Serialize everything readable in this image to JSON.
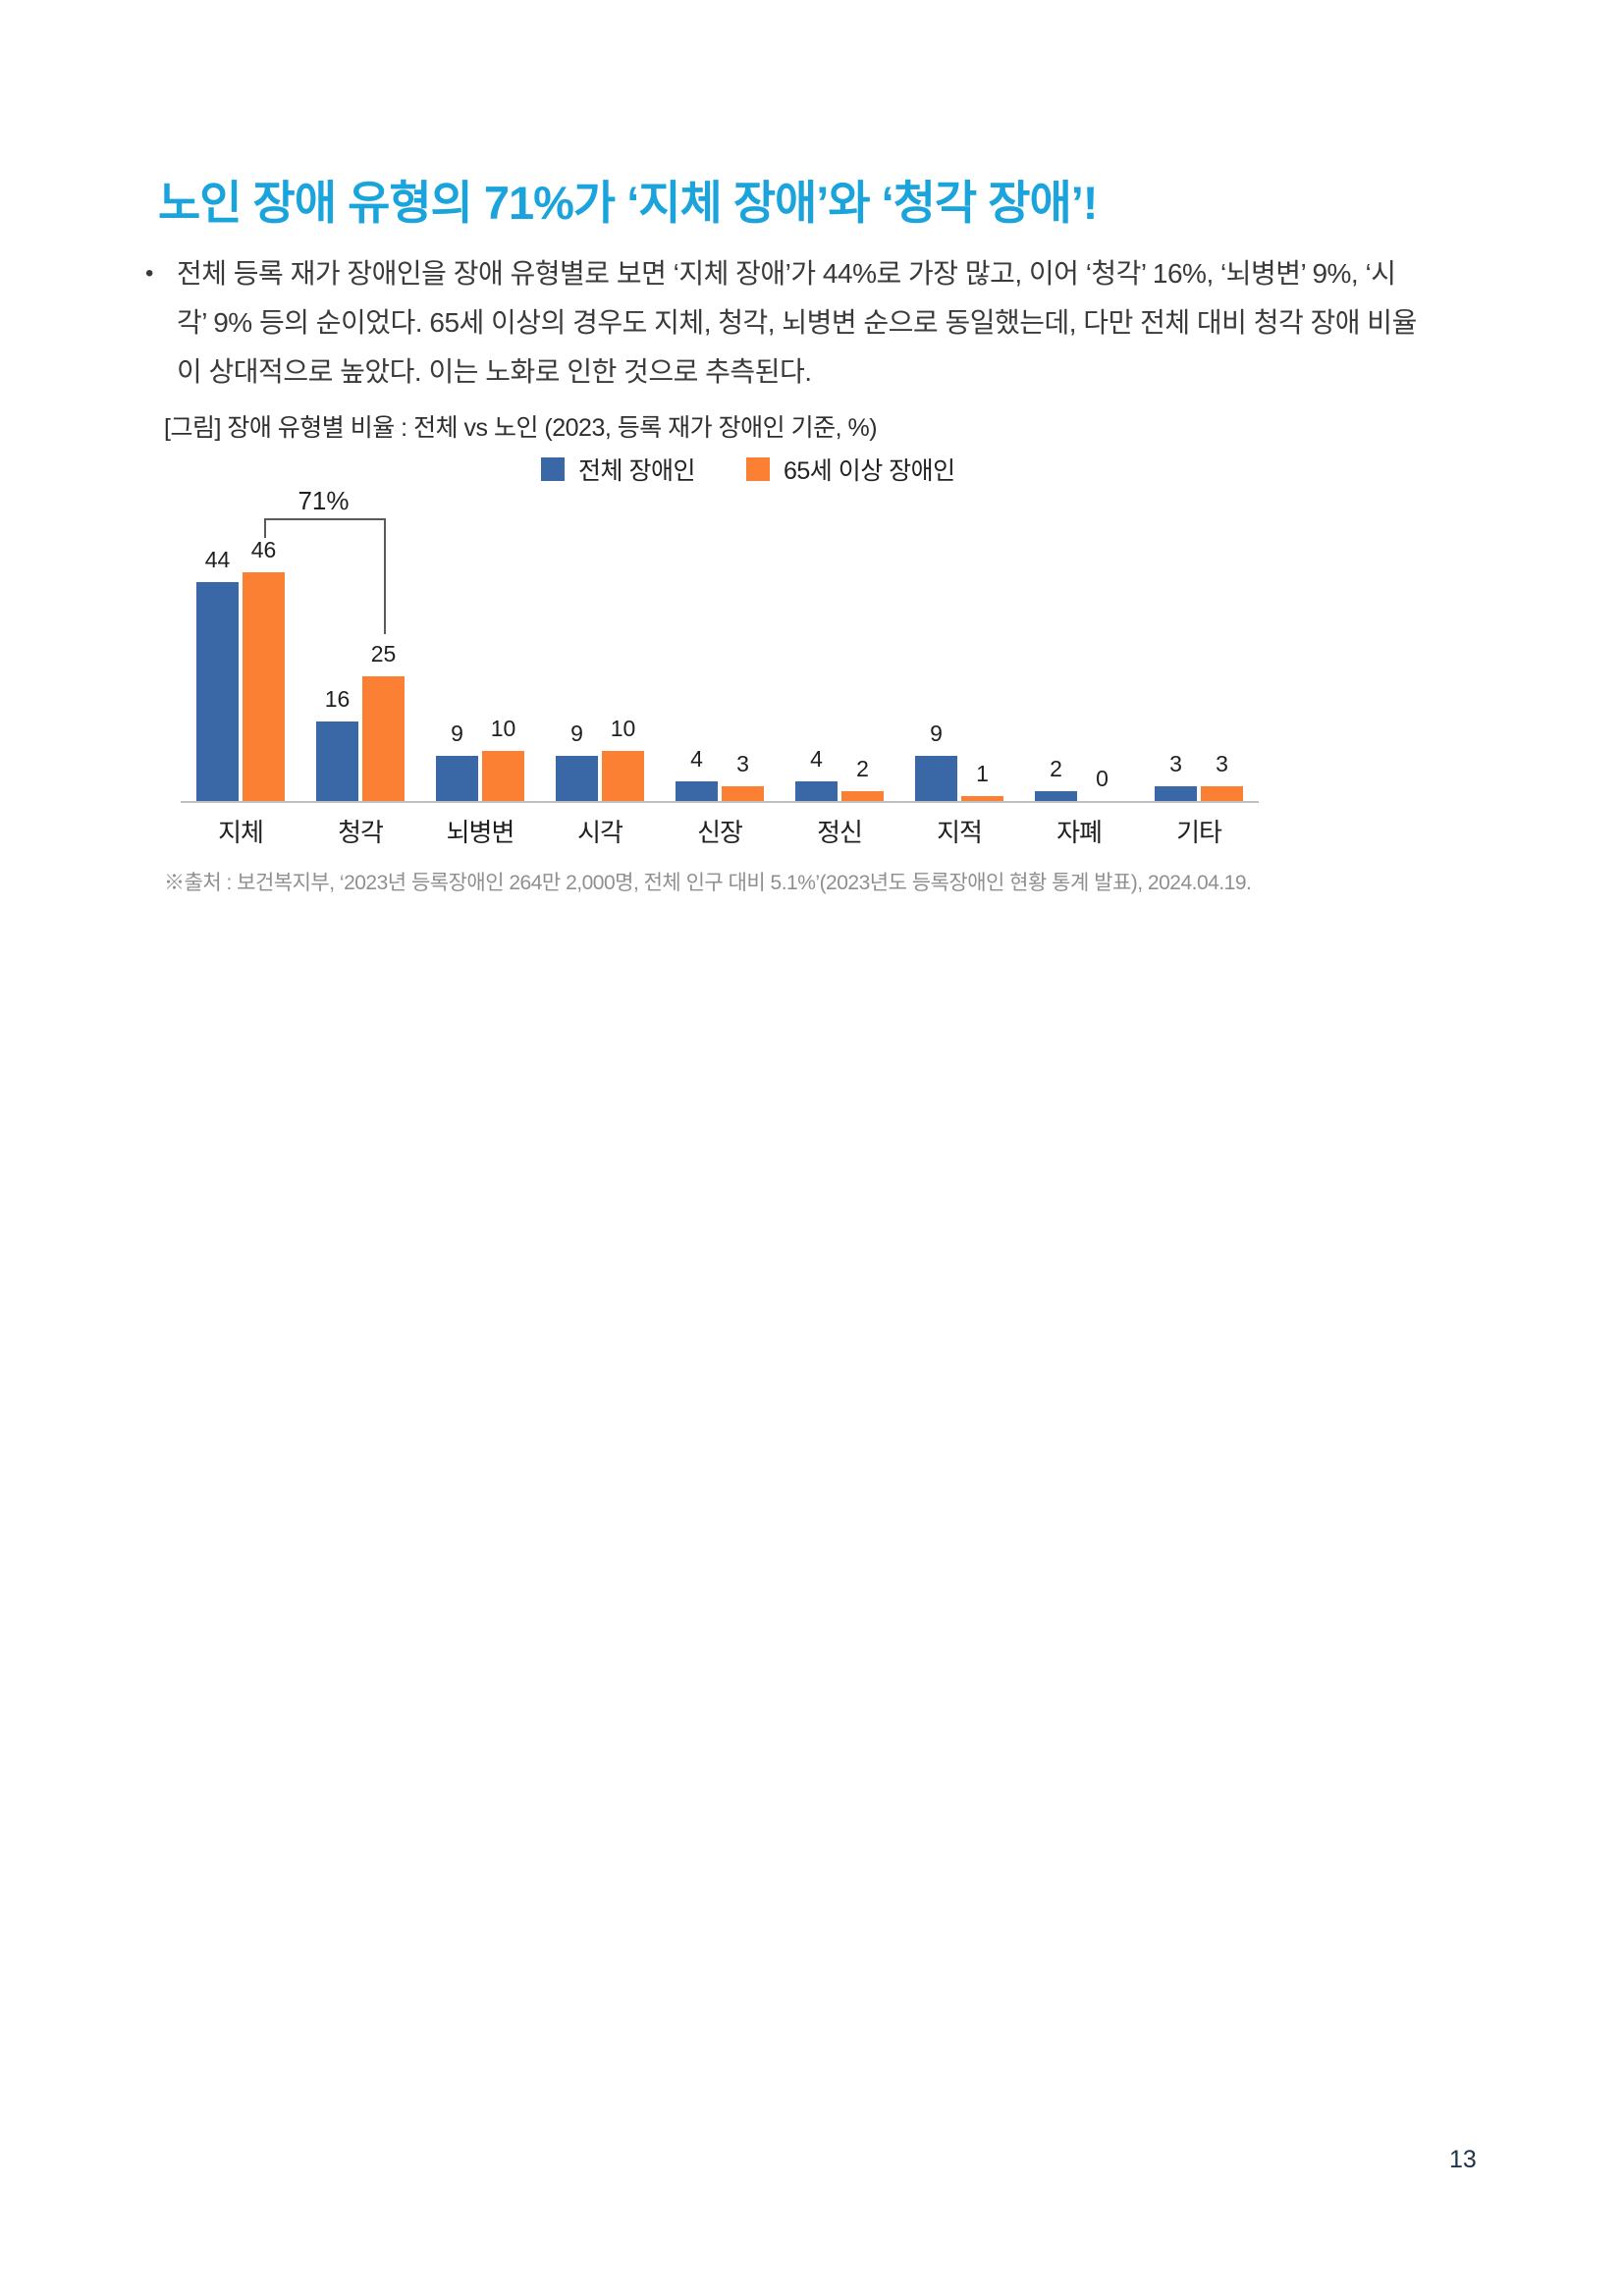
{
  "page": {
    "title": "노인 장애 유형의 71%가 ‘지체 장애’와 ‘청각 장애’!",
    "page_number": "13"
  },
  "body": {
    "bullet": "•",
    "lines": [
      "전체 등록 재가 장애인을 장애 유형별로 보면 ‘지체 장애’가 44%로 가장 많고, 이어 ‘청각’ 16%, ‘뇌병변’ 9%, ‘시",
      "각’ 9% 등의 순이었다. 65세 이상의 경우도 지체, 청각, 뇌병변 순으로 동일했는데, 다만 전체 대비 청각 장애 비율",
      "이 상대적으로 높았다. 이는 노화로 인한 것으로 추측된다."
    ]
  },
  "figure": {
    "caption": "[그림] 장애 유형별 비율 : 전체 vs 노인 (2023, 등록 재가 장애인 기준, %)",
    "source": "※출처 : 보건복지부, ‘2023년 등록장애인 264만 2,000명, 전체 인구 대비 5.1%’(2023년도 등록장애인 현황 통계 발표), 2024.04.19."
  },
  "chart_data": {
    "type": "bar",
    "categories": [
      "지체",
      "청각",
      "뇌병변",
      "시각",
      "신장",
      "정신",
      "지적",
      "자폐",
      "기타"
    ],
    "series": [
      {
        "name": "전체 장애인",
        "color": "#3A68A6",
        "values": [
          44,
          16,
          9,
          9,
          4,
          4,
          9,
          2,
          3
        ]
      },
      {
        "name": "65세 이상 장애인",
        "color": "#FC8033",
        "values": [
          46,
          25,
          10,
          10,
          3,
          2,
          1,
          0,
          3
        ]
      }
    ],
    "unit": "%",
    "ylim": [
      0,
      50
    ],
    "grid": false,
    "legend_position": "top",
    "annotation": {
      "label": "71%",
      "from_category": "지체",
      "to_category": "청각",
      "series": "65세 이상 장애인"
    }
  }
}
